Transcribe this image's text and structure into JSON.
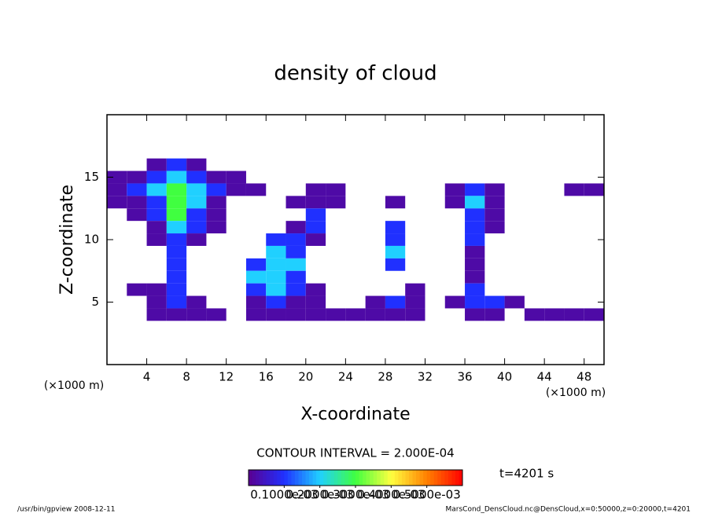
{
  "chart_data": {
    "type": "heatmap",
    "title": "density of cloud",
    "x_label": "X-coordinate",
    "y_label": "Z-coordinate",
    "x_unit": "(×1000 m)",
    "y_unit": "(×1000 m)",
    "contour_note": "CONTOUR INTERVAL = 2.000E-04",
    "time_label": "t=4201 s",
    "footer_left": "/usr/bin/gpview  2008-12-11",
    "footer_right": "MarsCond_DensCloud.nc@DensCloud,x=0:50000,z=0:20000,t=4201",
    "xlim": [
      0,
      50
    ],
    "ylim": [
      0,
      20
    ],
    "xticks": [
      4,
      8,
      12,
      16,
      20,
      24,
      28,
      32,
      36,
      40,
      44,
      48
    ],
    "yticks": [
      5,
      10,
      15
    ],
    "x": [
      1,
      3,
      5,
      7,
      9,
      11,
      13,
      15,
      17,
      19,
      21,
      23,
      25,
      27,
      29,
      31,
      33,
      35,
      37,
      39,
      41,
      43,
      45,
      47,
      49
    ],
    "y": [
      16,
      15,
      14,
      13,
      12,
      11,
      10,
      9,
      8,
      7,
      6,
      5,
      4
    ],
    "values": [
      [
        0,
        0,
        2e-05,
        0.0001,
        2e-05,
        0,
        0,
        0,
        0,
        0,
        0,
        0,
        0,
        0,
        0,
        0,
        0,
        0,
        0,
        0,
        0,
        0,
        0,
        0,
        0
      ],
      [
        2e-05,
        2e-05,
        0.0001,
        0.0002,
        0.0001,
        2e-05,
        2e-05,
        0,
        0,
        0,
        0,
        0,
        0,
        0,
        0,
        0,
        0,
        0,
        0,
        0,
        0,
        0,
        0,
        0,
        0
      ],
      [
        2e-05,
        0.0001,
        0.0002,
        0.0003,
        0.0002,
        0.0001,
        2e-05,
        2e-05,
        0,
        0,
        2e-05,
        2e-05,
        0,
        0,
        0,
        0,
        0,
        2e-05,
        0.0001,
        2e-05,
        0,
        0,
        0,
        2e-05,
        2e-05
      ],
      [
        2e-05,
        2e-05,
        0.0001,
        0.0003,
        0.0002,
        2e-05,
        0,
        0,
        0,
        2e-05,
        2e-05,
        2e-05,
        0,
        0,
        2e-05,
        0,
        0,
        2e-05,
        0.0002,
        2e-05,
        0,
        0,
        0,
        0,
        0
      ],
      [
        0,
        2e-05,
        0.0001,
        0.0003,
        0.0001,
        2e-05,
        0,
        0,
        0,
        0,
        0.0001,
        0,
        0,
        0,
        0,
        0,
        0,
        0,
        0.0001,
        2e-05,
        0,
        0,
        0,
        0,
        0
      ],
      [
        0,
        0,
        2e-05,
        0.0002,
        0.0001,
        2e-05,
        0,
        0,
        0,
        2e-05,
        0.0001,
        0,
        0,
        0,
        0.0001,
        0,
        0,
        0,
        0.0001,
        2e-05,
        0,
        0,
        0,
        0,
        0
      ],
      [
        0,
        0,
        2e-05,
        0.0001,
        2e-05,
        0,
        0,
        0,
        0.0001,
        0.0001,
        2e-05,
        0,
        0,
        0,
        0.0001,
        0,
        0,
        0,
        0.0001,
        0,
        0,
        0,
        0,
        0,
        0
      ],
      [
        0,
        0,
        0,
        0.0001,
        0,
        0,
        0,
        0,
        0.0002,
        0.0001,
        0,
        0,
        0,
        0,
        0.0002,
        0,
        0,
        0,
        2e-05,
        0,
        0,
        0,
        0,
        0,
        0
      ],
      [
        0,
        0,
        0,
        0.0001,
        0,
        0,
        0,
        0.0001,
        0.0002,
        0.0002,
        0,
        0,
        0,
        0,
        0.0001,
        0,
        0,
        0,
        2e-05,
        0,
        0,
        0,
        0,
        0,
        0
      ],
      [
        0,
        0,
        0,
        0.0001,
        0,
        0,
        0,
        0.0002,
        0.0002,
        0.0001,
        0,
        0,
        0,
        0,
        0,
        0,
        0,
        0,
        2e-05,
        0,
        0,
        0,
        0,
        0,
        0
      ],
      [
        0,
        2e-05,
        2e-05,
        0.0001,
        0,
        0,
        0,
        0.0001,
        0.0002,
        0.0001,
        2e-05,
        0,
        0,
        0,
        0,
        2e-05,
        0,
        0,
        0.0001,
        0,
        0,
        0,
        0,
        0,
        0
      ],
      [
        0,
        0,
        2e-05,
        0.0001,
        2e-05,
        0,
        0,
        2e-05,
        0.0001,
        2e-05,
        2e-05,
        0,
        0,
        2e-05,
        0.0001,
        2e-05,
        0,
        2e-05,
        0.0001,
        0.0001,
        2e-05,
        0,
        0,
        0,
        0
      ],
      [
        0,
        0,
        2e-05,
        2e-05,
        2e-05,
        2e-05,
        0,
        2e-05,
        2e-05,
        2e-05,
        2e-05,
        2e-05,
        2e-05,
        2e-05,
        2e-05,
        2e-05,
        0,
        0,
        2e-05,
        2e-05,
        0,
        2e-05,
        2e-05,
        2e-05,
        2e-05
      ]
    ],
    "clim": [
      0,
      0.0006
    ],
    "colormap": [
      "#5a0090",
      "#2030ff",
      "#20d0ff",
      "#40ff40",
      "#ffff40",
      "#ff8000",
      "#ff0000"
    ],
    "colorbar_ticks": [
      {
        "value": 0.0001,
        "label": "0.1000e-03"
      },
      {
        "value": 0.0002,
        "label": "0.2000e-03"
      },
      {
        "value": 0.0003,
        "label": "0.3000e-03"
      },
      {
        "value": 0.0004,
        "label": "0.4000e-03"
      },
      {
        "value": 0.0005,
        "label": "0.5000e-03"
      }
    ]
  }
}
